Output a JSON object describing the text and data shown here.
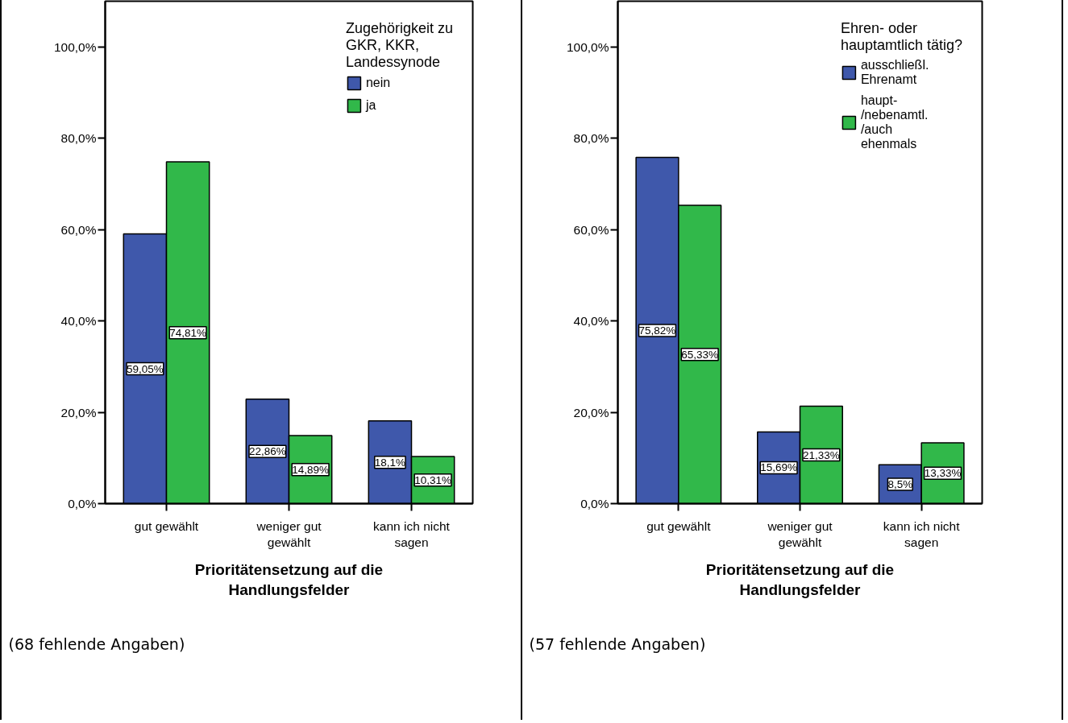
{
  "chart_data": [
    {
      "type": "bar",
      "categories": [
        "gut gewählt",
        "weniger gut gewählt",
        "kann ich nicht sagen"
      ],
      "series": [
        {
          "name": "nein",
          "color": "#3f58ab",
          "values": [
            59.05,
            22.86,
            18.1
          ],
          "value_labels": [
            "59,05%",
            "22,86%",
            "18,1%"
          ]
        },
        {
          "name": "ja",
          "color": "#31b84a",
          "values": [
            74.81,
            14.89,
            10.31
          ],
          "value_labels": [
            "74,81%",
            "14,89%",
            "10,31%"
          ]
        }
      ],
      "xlabel": "Prioritätensetzung auf die Handlungsfelder",
      "legend_title": "Zugehörigkeit zu GKR, KKR, Landessynode",
      "legend": "top right",
      "ylim": [
        0,
        110
      ],
      "yticks": [
        {
          "value": 0,
          "label": "0,0%"
        },
        {
          "value": 20,
          "label": "20,0%"
        },
        {
          "value": 40,
          "label": "40,0%"
        },
        {
          "value": 60,
          "label": "60,0%"
        },
        {
          "value": 80,
          "label": "80,0%"
        },
        {
          "value": 100,
          "label": "100,0%"
        }
      ],
      "annotations": [
        "(68 fehlende Angaben)"
      ]
    },
    {
      "type": "bar",
      "categories": [
        "gut gewählt",
        "weniger gut gewählt",
        "kann ich nicht sagen"
      ],
      "series": [
        {
          "name": "ausschließl. Ehrenamt",
          "color": "#3f58ab",
          "values": [
            75.82,
            15.69,
            8.5
          ],
          "value_labels": [
            "75,82%",
            "15,69%",
            "8,5%"
          ]
        },
        {
          "name": "haupt-/nebenamtl./auch ehenmals",
          "color": "#31b84a",
          "values": [
            65.33,
            21.33,
            13.33
          ],
          "value_labels": [
            "65,33%",
            "21,33%",
            "13,33%"
          ]
        }
      ],
      "xlabel": "Prioritätensetzung auf die Handlungsfelder",
      "legend_title": "Ehren- oder hauptamtlich tätig?",
      "legend": "top right",
      "ylim": [
        0,
        110
      ],
      "yticks": [
        {
          "value": 0,
          "label": "0,0%"
        },
        {
          "value": 20,
          "label": "20,0%"
        },
        {
          "value": 40,
          "label": "40,0%"
        },
        {
          "value": 60,
          "label": "60,0%"
        },
        {
          "value": 80,
          "label": "80,0%"
        },
        {
          "value": 100,
          "label": "100,0%"
        }
      ],
      "annotations": [
        "(57 fehlende Angaben)"
      ]
    }
  ]
}
